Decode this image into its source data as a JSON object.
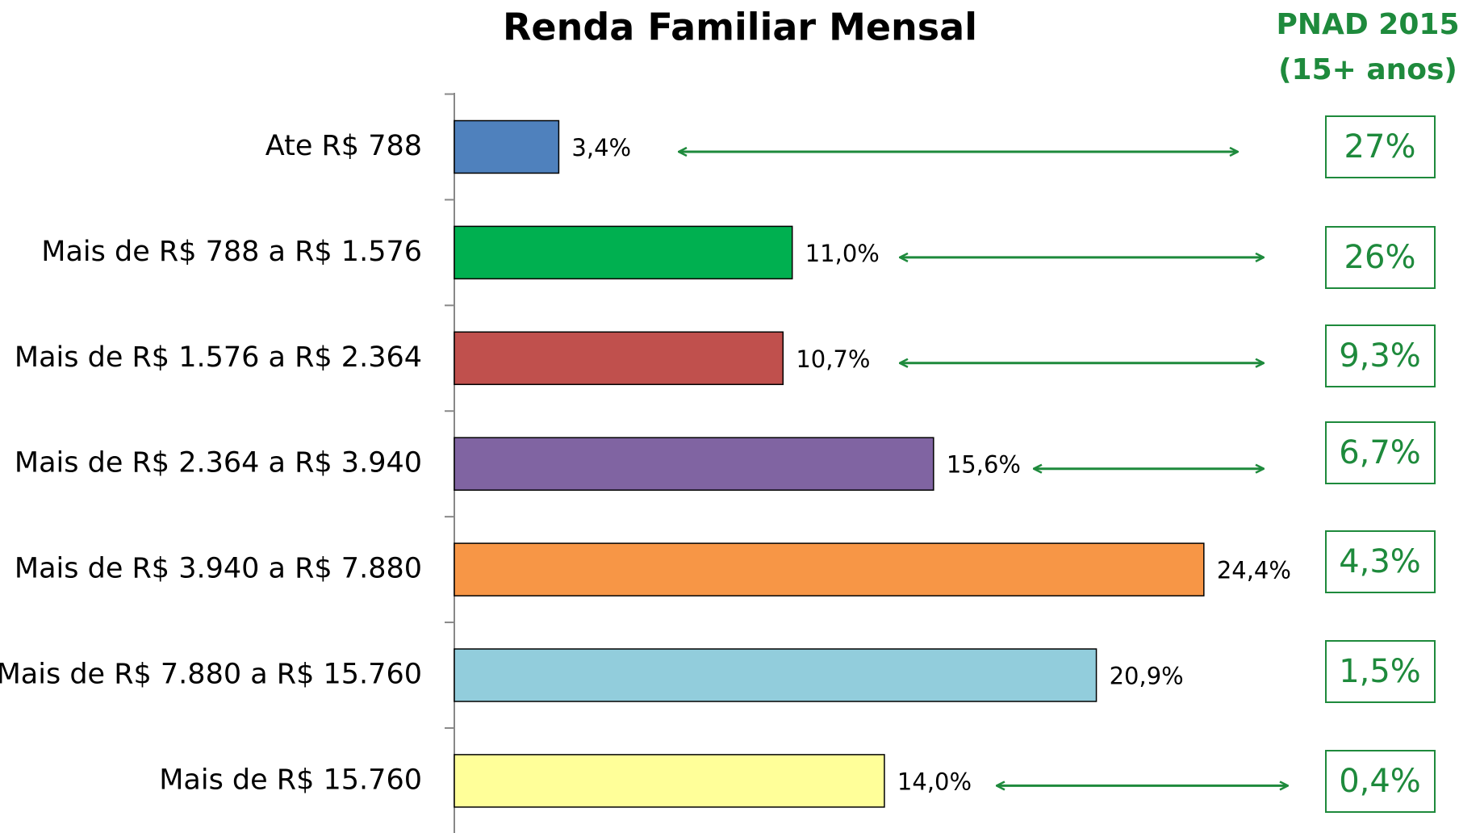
{
  "chart_data": {
    "type": "bar",
    "orientation": "horizontal",
    "title": "Renda Familiar Mensal",
    "categories": [
      "Ate R$ 788",
      "Mais de R$ 788 a R$ 1.576",
      "Mais de R$ 1.576 a R$ 2.364",
      "Mais de R$ 2.364 a R$ 3.940",
      "Mais de R$ 3.940 a R$ 7.880",
      "Mais de R$ 7.880 a R$ 15.760",
      "Mais de R$ 15.760"
    ],
    "values": [
      3.4,
      11.0,
      10.7,
      15.6,
      24.4,
      20.9,
      14.0
    ],
    "value_labels": [
      "3,4%",
      "11,0%",
      "10,7%",
      "15,6%",
      "24,4%",
      "20,9%",
      "14,0%"
    ],
    "colors": [
      "#4f81bd",
      "#00b050",
      "#c0504d",
      "#8064a2",
      "#f79646",
      "#92cddc",
      "#ffff99"
    ],
    "xlim": [
      0,
      30
    ]
  },
  "pnad": {
    "title": [
      "PNAD 2015",
      "(15+ anos)"
    ],
    "values": [
      27,
      26,
      9.3,
      6.7,
      4.3,
      1.5,
      0.4
    ],
    "value_labels": [
      "27%",
      "26%",
      "9,3%",
      "6,7%",
      "4,3%",
      "1,5%",
      "0,4%"
    ]
  }
}
